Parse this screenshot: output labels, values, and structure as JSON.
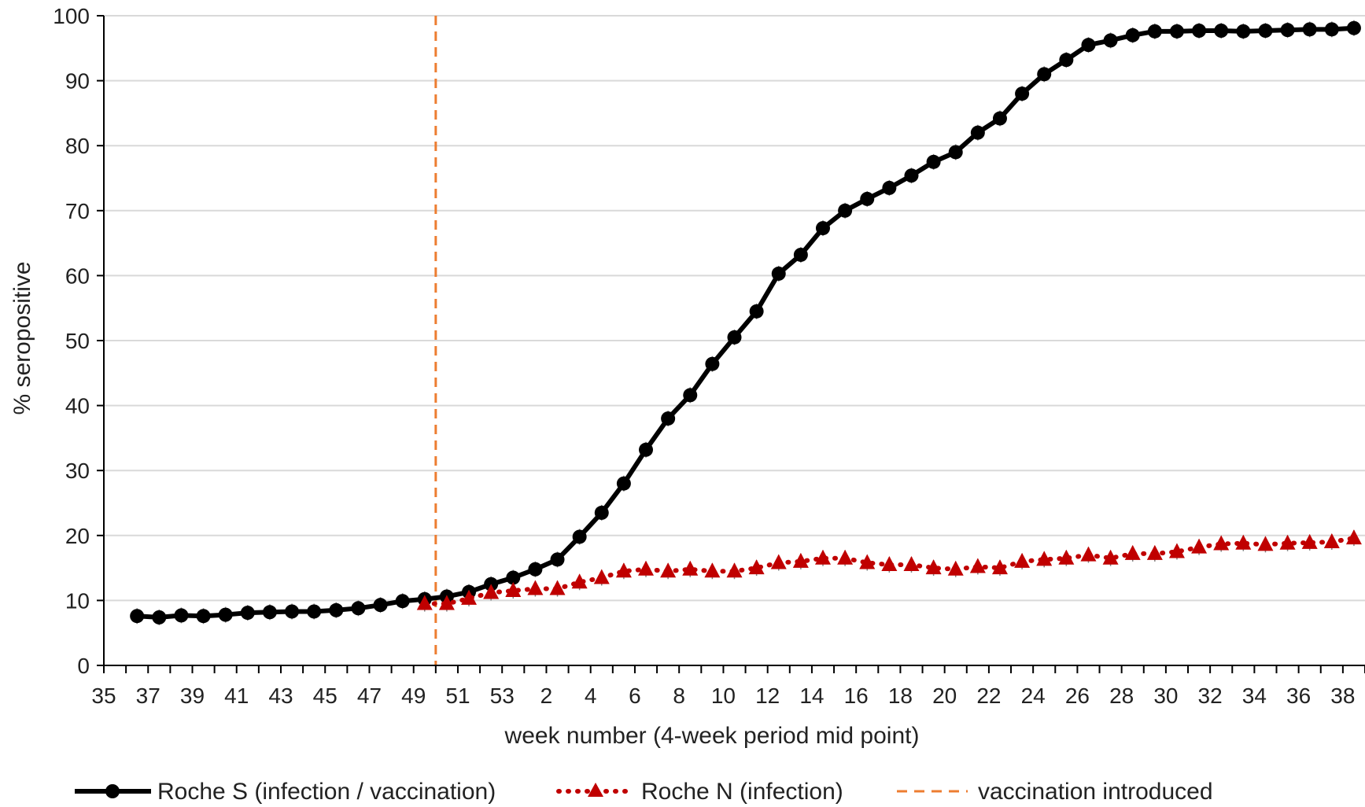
{
  "chart_data": {
    "type": "line",
    "title": "",
    "xlabel": "week number  (4-week period mid point)",
    "ylabel": "% seropositive",
    "ylim": [
      0,
      100
    ],
    "yticks": [
      0,
      10,
      20,
      30,
      40,
      50,
      60,
      70,
      80,
      90,
      100
    ],
    "grid": "horizontal",
    "legend": "bottom",
    "x_tick_labels": [
      "35",
      "37",
      "39",
      "41",
      "43",
      "45",
      "47",
      "49",
      "51",
      "53",
      "2",
      "4",
      "6",
      "8",
      "10",
      "12",
      "14",
      "16",
      "18",
      "20",
      "22",
      "24",
      "26",
      "28",
      "30",
      "32",
      "34",
      "36",
      "38"
    ],
    "x_tick_positions": [
      35,
      37,
      39,
      41,
      43,
      45,
      47,
      49,
      51,
      53,
      55,
      57,
      59,
      61,
      63,
      65,
      67,
      69,
      71,
      73,
      75,
      77,
      79,
      81,
      83,
      85,
      87,
      89,
      91
    ],
    "x_range": [
      35,
      92
    ],
    "x_note": "weeks run 35..53 in the first year then 1..38 in the next; position = week (first year) or week+53 (second year)",
    "series": [
      {
        "name": "Roche S (infection / vaccination)",
        "color": "#000000",
        "line": "solid",
        "marker": "circle",
        "x": [
          36.5,
          37.5,
          38.5,
          39.5,
          40.5,
          41.5,
          42.5,
          43.5,
          44.5,
          45.5,
          46.5,
          47.5,
          48.5,
          49.5,
          50.5,
          51.5,
          52.5,
          53.5,
          54.5,
          55.5,
          56.5,
          57.5,
          58.5,
          59.5,
          60.5,
          61.5,
          62.5,
          63.5,
          64.5,
          65.5,
          66.5,
          67.5,
          68.5,
          69.5,
          70.5,
          71.5,
          72.5,
          73.5,
          74.5,
          75.5,
          76.5,
          77.5,
          78.5,
          79.5,
          80.5,
          81.5,
          82.5,
          83.5,
          84.5,
          85.5,
          86.5,
          87.5,
          88.5,
          89.5,
          90.5,
          91.5
        ],
        "y": [
          7.6,
          7.4,
          7.7,
          7.6,
          7.8,
          8.1,
          8.2,
          8.3,
          8.3,
          8.5,
          8.8,
          9.3,
          9.9,
          10.2,
          10.6,
          11.3,
          12.5,
          13.5,
          14.8,
          16.3,
          19.8,
          23.5,
          28.0,
          33.2,
          38.0,
          41.6,
          46.4,
          50.5,
          54.5,
          60.3,
          63.2,
          67.3,
          70.0,
          71.8,
          73.5,
          75.4,
          77.5,
          79.0,
          82.0,
          84.2,
          88.0,
          91.0,
          93.2,
          95.5,
          96.2,
          97.0,
          97.6,
          97.6,
          97.7,
          97.7,
          97.6,
          97.7,
          97.8,
          97.9,
          97.9,
          98.1
        ]
      },
      {
        "name": "Roche N (infection)",
        "color": "#c00000",
        "line": "dotted",
        "marker": "triangle",
        "x": [
          49.5,
          50.5,
          51.5,
          52.5,
          53.5,
          54.5,
          55.5,
          56.5,
          57.5,
          58.5,
          59.5,
          60.5,
          61.5,
          62.5,
          63.5,
          64.5,
          65.5,
          66.5,
          67.5,
          68.5,
          69.5,
          70.5,
          71.5,
          72.5,
          73.5,
          74.5,
          75.5,
          76.5,
          77.5,
          78.5,
          79.5,
          80.5,
          81.5,
          82.5,
          83.5,
          84.5,
          85.5,
          86.5,
          87.5,
          88.5,
          89.5,
          90.5,
          91.5
        ],
        "y": [
          9.5,
          9.5,
          10.3,
          11.2,
          11.5,
          11.8,
          11.8,
          12.8,
          13.5,
          14.5,
          14.8,
          14.5,
          14.8,
          14.5,
          14.5,
          15.0,
          15.8,
          16.0,
          16.5,
          16.5,
          15.8,
          15.5,
          15.5,
          15.0,
          14.8,
          15.2,
          15.0,
          16.0,
          16.3,
          16.5,
          17.0,
          16.5,
          17.2,
          17.2,
          17.5,
          18.2,
          18.7,
          18.8,
          18.6,
          18.8,
          18.9,
          19.0,
          19.6
        ]
      }
    ],
    "annotations": [
      {
        "name": "vaccination introduced",
        "type": "vline",
        "x": 50,
        "color": "#ed7d31",
        "line": "dashed"
      }
    ]
  }
}
